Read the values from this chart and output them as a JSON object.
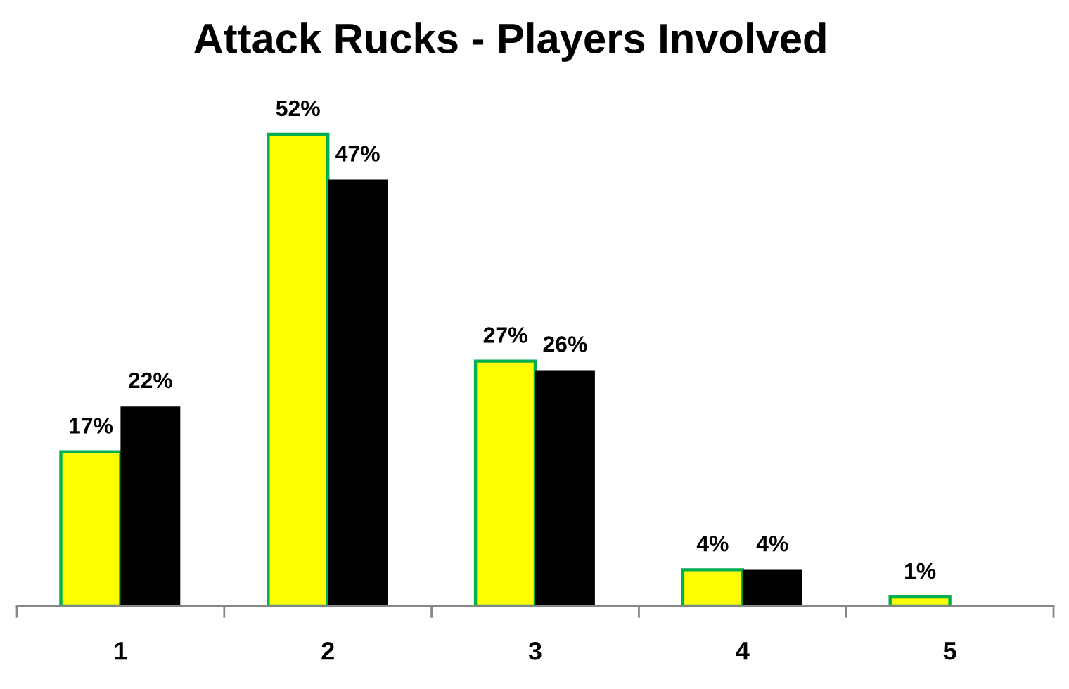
{
  "chart_data": {
    "type": "bar",
    "title": "Attack Rucks - Players Involved",
    "categories": [
      "1",
      "2",
      "3",
      "4",
      "5"
    ],
    "series": [
      {
        "color": "#ffff00",
        "values": [
          17,
          52,
          27,
          4,
          1
        ],
        "value_labels": [
          "17%",
          "52%",
          "27%",
          "4%",
          "1%"
        ]
      },
      {
        "color": "#000000",
        "values": [
          22,
          47,
          26,
          4,
          null
        ],
        "value_labels": [
          "22%",
          "47%",
          "26%",
          "4%",
          null
        ]
      }
    ]
  }
}
